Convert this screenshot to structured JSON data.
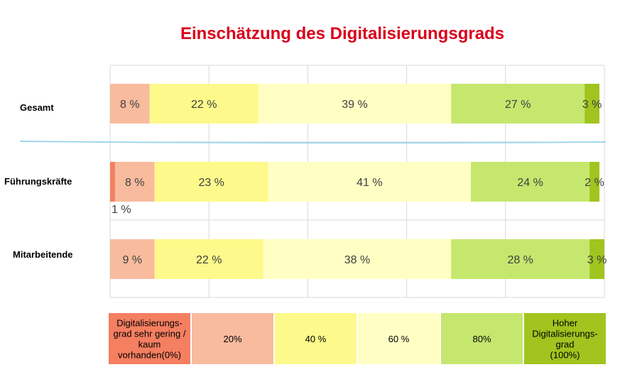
{
  "chart_data": {
    "type": "bar",
    "orientation": "horizontal",
    "stacked": true,
    "title": "Einschätzung des Digitalisierungsgrads",
    "categories": [
      "Gesamt",
      "Führungskräfte",
      "Mitarbeitende"
    ],
    "colors": [
      "#f47f61",
      "#f8bb9e",
      "#fdf98b",
      "#ffffc4",
      "#c5e76e",
      "#a1c41f"
    ],
    "series": [
      {
        "values": [
          0,
          1,
          0
        ],
        "labels": [
          "",
          "1 %",
          ""
        ]
      },
      {
        "values": [
          8,
          8,
          9
        ],
        "labels": [
          "8 %",
          "8 %",
          "9 %"
        ]
      },
      {
        "values": [
          22,
          23,
          22
        ],
        "labels": [
          "22 %",
          "23 %",
          "22 %"
        ]
      },
      {
        "values": [
          39,
          41,
          38
        ],
        "labels": [
          "39 %",
          "41 %",
          "38 %"
        ]
      },
      {
        "values": [
          27,
          24,
          28
        ],
        "labels": [
          "27 %",
          "24 %",
          "28 %"
        ]
      },
      {
        "values": [
          3,
          2,
          3
        ],
        "labels": [
          "3 %",
          "2 %",
          "3 %"
        ]
      }
    ],
    "xlim": [
      0,
      100
    ],
    "grid": true,
    "legend_position": "bottom",
    "legend": [
      "Digitalisierungs-grad sehr gering / kaum vorhanden(0%)",
      "20%",
      "40 %",
      "60 %",
      "80%",
      "Hoher Digitalisierungs-grad (100%)"
    ]
  }
}
